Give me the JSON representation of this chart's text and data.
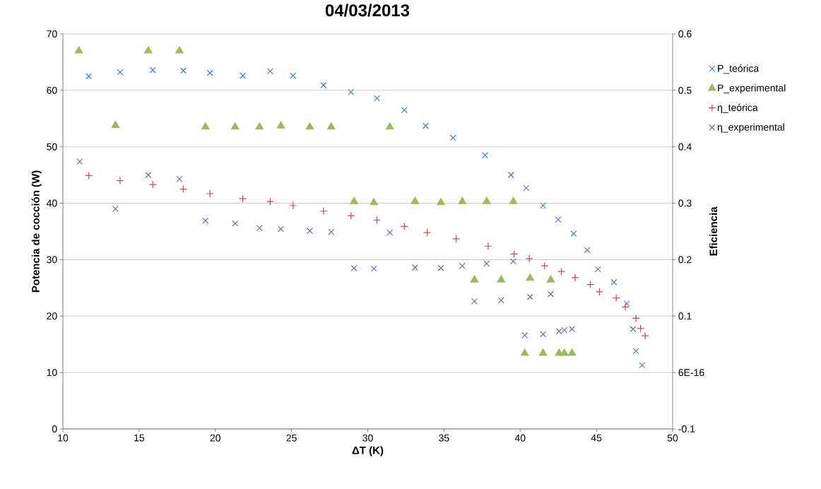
{
  "chart_data": {
    "type": "scatter",
    "title": "04/03/2013",
    "xlabel": "ΔT (K)",
    "ylabel": "Potencia de cocción (W)",
    "y2label": "Eficiencia",
    "xlim": [
      10,
      50
    ],
    "xticks": [
      10,
      15,
      20,
      25,
      30,
      35,
      40,
      45,
      50
    ],
    "ylim": [
      0,
      70
    ],
    "yticks": [
      0,
      10,
      20,
      30,
      40,
      50,
      60,
      70
    ],
    "y2lim": [
      -0.1,
      0.6
    ],
    "y2ticks": [
      -0.1,
      {
        "value": 0,
        "label": "6E-16"
      },
      0.1,
      0.2,
      0.3,
      0.4,
      0.5,
      0.6
    ],
    "grid": "y",
    "legend": "right",
    "series": [
      {
        "name": "P_teórica",
        "color": "#4a7ebb",
        "marker": "cross",
        "x": [
          11.7,
          13.75,
          15.9,
          17.9,
          19.65,
          21.8,
          23.6,
          25.1,
          27.1,
          28.9,
          30.6,
          32.4,
          33.8,
          35.6,
          37.7,
          39.4,
          40.4,
          41.5,
          42.5,
          43.5,
          44.4,
          45.1,
          46.15,
          47.0,
          47.4,
          47.6,
          48.0
        ],
        "values": [
          62.5,
          63.2,
          63.6,
          63.5,
          63.1,
          62.6,
          63.4,
          62.6,
          60.9,
          59.7,
          58.6,
          56.5,
          53.7,
          51.6,
          48.5,
          45.0,
          42.7,
          39.6,
          37.1,
          34.6,
          31.7,
          28.3,
          26.0,
          22.2,
          17.7,
          13.8,
          11.3
        ]
      },
      {
        "name": "P_experimental",
        "color": "#9bbb59",
        "marker": "triangle",
        "x": [
          11.05,
          13.45,
          15.6,
          17.65,
          19.35,
          21.3,
          22.9,
          24.3,
          26.2,
          27.6,
          29.1,
          30.4,
          31.45,
          33.1,
          34.8,
          36.2,
          37.0,
          37.8,
          38.75,
          39.55,
          40.3,
          40.65,
          41.5,
          42.0,
          42.55,
          42.9,
          43.4
        ],
        "values": [
          67.0,
          53.8,
          67.0,
          67.0,
          53.5,
          53.5,
          53.5,
          53.7,
          53.5,
          53.5,
          40.3,
          40.1,
          53.5,
          40.3,
          40.1,
          40.3,
          26.4,
          40.3,
          26.4,
          40.3,
          13.4,
          26.7,
          13.4,
          26.4,
          13.4,
          13.4,
          13.4
        ]
      },
      {
        "name": "η_teórica",
        "color": "#c0504d",
        "marker": "plus",
        "axis": "y2",
        "x": [
          11.7,
          13.75,
          15.9,
          17.9,
          19.65,
          21.8,
          23.6,
          25.1,
          27.1,
          28.9,
          30.6,
          32.4,
          33.9,
          35.8,
          37.9,
          39.6,
          40.6,
          41.6,
          42.7,
          43.6,
          44.6,
          45.2,
          46.3,
          46.9,
          47.6,
          47.9,
          48.2
        ],
        "values": [
          0.349,
          0.34,
          0.333,
          0.325,
          0.317,
          0.308,
          0.303,
          0.296,
          0.286,
          0.278,
          0.27,
          0.259,
          0.248,
          0.237,
          0.224,
          0.21,
          0.202,
          0.189,
          0.179,
          0.168,
          0.156,
          0.143,
          0.132,
          0.116,
          0.096,
          0.078,
          0.065
        ]
      },
      {
        "name": "η_experimental",
        "color": "#8064a2",
        "marker": "cross",
        "axis": "y2",
        "x": [
          11.1,
          13.45,
          15.6,
          17.65,
          19.35,
          21.3,
          22.9,
          24.3,
          26.2,
          27.6,
          29.1,
          30.4,
          31.45,
          33.1,
          34.8,
          36.2,
          37.0,
          37.8,
          38.75,
          39.55,
          40.3,
          40.65,
          41.5,
          42.0,
          42.55,
          42.9,
          43.4
        ],
        "values": [
          0.374,
          0.29,
          0.35,
          0.343,
          0.269,
          0.264,
          0.256,
          0.254,
          0.251,
          0.249,
          0.185,
          0.184,
          0.248,
          0.186,
          0.185,
          0.189,
          0.126,
          0.193,
          0.128,
          0.197,
          0.066,
          0.134,
          0.068,
          0.139,
          0.073,
          0.075,
          0.077
        ]
      }
    ]
  }
}
